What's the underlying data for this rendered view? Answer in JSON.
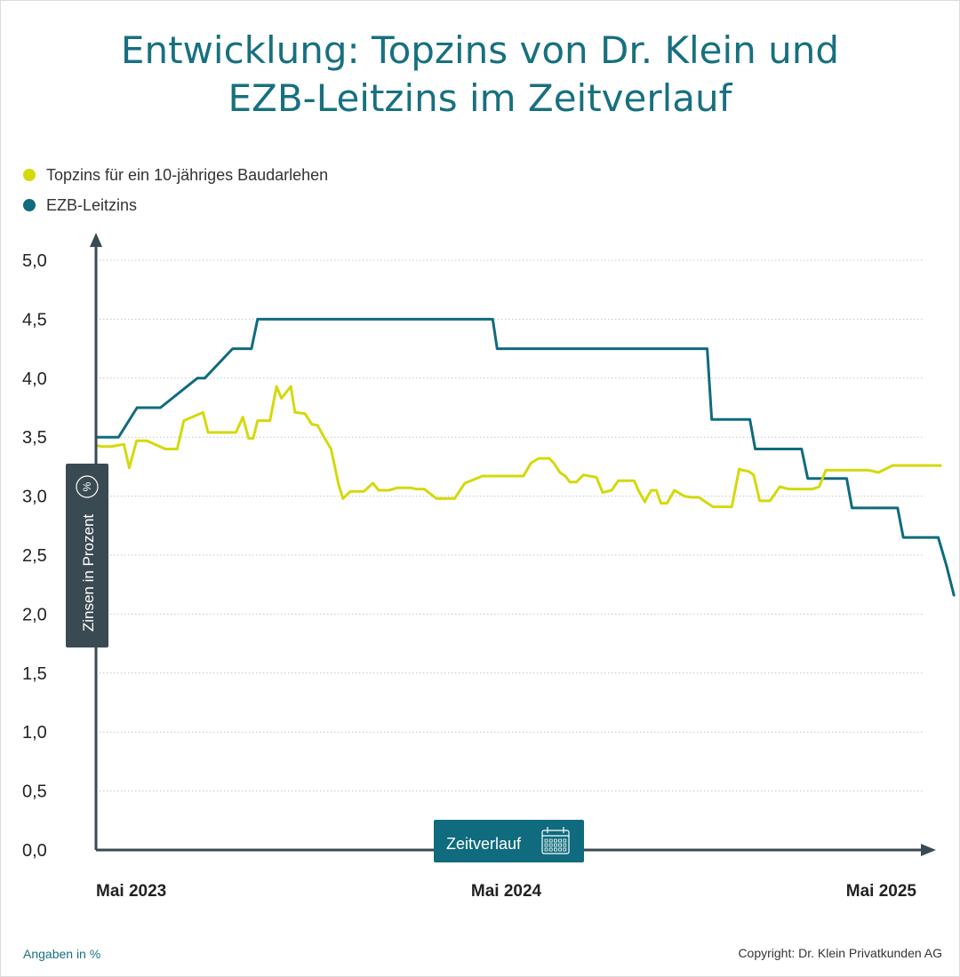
{
  "title": {
    "line1": "Entwicklung: Topzins von Dr. Klein und",
    "line2": "EZB-Leitzins im Zeitverlauf"
  },
  "colors": {
    "title": "#17707f",
    "topzins": "#d4d90a",
    "ezb": "#0f6b7d",
    "axis": "#3a4a52",
    "badge": "#0f6b7d",
    "ylabel_box": "#3a4a52"
  },
  "footer": {
    "left": "Angaben in %",
    "right": "Copyright: Dr. Klein Privatkunden AG"
  },
  "chart_data": {
    "type": "line",
    "title": "Entwicklung: Topzins von Dr. Klein und EZB-Leitzins im Zeitverlauf",
    "ylabel": "Zinsen in Prozent",
    "ylabel_icon": "percent-icon",
    "xlabel": "Zeitverlauf",
    "xlabel_icon": "calendar-icon",
    "xlim": [
      2023.33,
      2025.5
    ],
    "ylim": [
      0,
      5
    ],
    "y_ticks": [
      0,
      0.5,
      1,
      1.5,
      2,
      2.5,
      3,
      3.5,
      4,
      4.5,
      5
    ],
    "y_tick_labels": [
      "0,0",
      "0,5",
      "1,0",
      "1,5",
      "2,0",
      "2,5",
      "3,0",
      "3,5",
      "4,0",
      "4,5",
      "5,0"
    ],
    "x_ticks": [
      2023.33,
      2024.33,
      2025.33
    ],
    "x_tick_labels": [
      "Mai 2023",
      "Mai 2024",
      "Mai 2025"
    ],
    "grid": "horizontal dotted",
    "legend_position": "top-left",
    "series": [
      {
        "name": "Topzins für ein 10-jähriges Baudarlehen",
        "color": "#d4d90a",
        "x": [
          2023.33,
          2023.345,
          2023.367,
          2023.398,
          2023.411,
          2023.429,
          2023.454,
          2023.499,
          2023.512,
          2023.528,
          2023.544,
          2023.591,
          2023.603,
          2023.619,
          2023.639,
          2023.671,
          2023.688,
          2023.702,
          2023.713,
          2023.724,
          2023.735,
          2023.754,
          2023.77,
          2023.782,
          2023.805,
          2023.815,
          2023.839,
          2023.856,
          2023.87,
          2023.886,
          2023.903,
          2023.922,
          2023.932,
          2023.95,
          2023.968,
          2023.983,
          2024.005,
          2024.019,
          2024.035,
          2024.044,
          2024.064,
          2024.08,
          2024.098,
          2024.11,
          2024.13,
          2024.16,
          2024.204,
          2024.229,
          2024.272,
          2024.292,
          2024.301,
          2024.312,
          2024.331,
          2024.341,
          2024.353,
          2024.372,
          2024.39,
          2024.409,
          2024.435,
          2024.446,
          2024.461,
          2024.474,
          2024.485,
          2024.501,
          2024.518,
          2024.55,
          2024.565,
          2024.587,
          2024.603,
          2024.618,
          2024.628,
          2024.642,
          2024.652,
          2024.668,
          2024.673,
          2024.684,
          2024.696,
          2024.707,
          2024.722,
          2024.74,
          2024.764,
          2024.781,
          2024.799,
          2024.834,
          2024.842,
          2024.854,
          2024.866,
          2024.88,
          2024.898,
          2024.906,
          2024.921,
          2024.933,
          2024.948,
          2024.973,
          2024.997,
          2025.018,
          2025.042,
          2025.077,
          2025.093,
          2025.109,
          2025.13,
          2025.154,
          2025.172,
          2025.197,
          2025.214,
          2025.237,
          2025.272,
          2025.3,
          2025.316,
          2025.332,
          2025.35,
          2025.389
        ],
        "values": [
          3.43,
          3.42,
          3.42,
          3.44,
          3.24,
          3.47,
          3.47,
          3.4,
          3.4,
          3.4,
          3.64,
          3.71,
          3.54,
          3.54,
          3.54,
          3.54,
          3.67,
          3.49,
          3.49,
          3.64,
          3.64,
          3.64,
          3.93,
          3.83,
          3.93,
          3.71,
          3.7,
          3.61,
          3.6,
          3.5,
          3.4,
          3.09,
          2.98,
          3.04,
          3.04,
          3.04,
          3.11,
          3.05,
          3.05,
          3.05,
          3.07,
          3.07,
          3.07,
          3.06,
          3.06,
          2.98,
          2.98,
          3.11,
          3.17,
          3.17,
          3.17,
          3.17,
          3.17,
          3.17,
          3.17,
          3.17,
          3.28,
          3.32,
          3.32,
          3.28,
          3.2,
          3.17,
          3.12,
          3.12,
          3.18,
          3.16,
          3.03,
          3.05,
          3.13,
          3.13,
          3.13,
          3.13,
          3.05,
          2.95,
          2.99,
          3.05,
          3.05,
          2.94,
          2.94,
          3.05,
          3.0,
          2.99,
          2.99,
          2.91,
          2.91,
          2.91,
          2.91,
          2.91,
          3.23,
          3.22,
          3.21,
          3.18,
          2.96,
          2.96,
          3.08,
          3.06,
          3.06,
          3.06,
          3.08,
          3.22,
          3.22,
          3.22,
          3.22,
          3.22,
          3.22,
          3.2,
          3.26,
          3.26,
          3.26,
          3.26,
          3.26,
          3.26
        ]
      },
      {
        "name": "EZB-Leitzins",
        "color": "#0f6b7d",
        "x": [
          2023.33,
          2023.385,
          2023.43,
          2023.487,
          2023.577,
          2023.595,
          2023.663,
          2023.709,
          2023.724,
          2023.735,
          2024.297,
          2024.308,
          2024.82,
          2024.831,
          2024.924,
          2024.937,
          2025.05,
          2025.065,
          2025.16,
          2025.173,
          2025.284,
          2025.298,
          2025.383,
          2025.404
        ],
        "values": [
          3.5,
          3.5,
          3.75,
          3.75,
          4.0,
          4.0,
          4.25,
          4.25,
          4.5,
          4.5,
          4.5,
          4.25,
          4.25,
          3.65,
          3.65,
          3.4,
          3.4,
          3.15,
          3.15,
          2.9,
          2.9,
          2.65,
          2.65,
          2.4
        ]
      }
    ]
  }
}
